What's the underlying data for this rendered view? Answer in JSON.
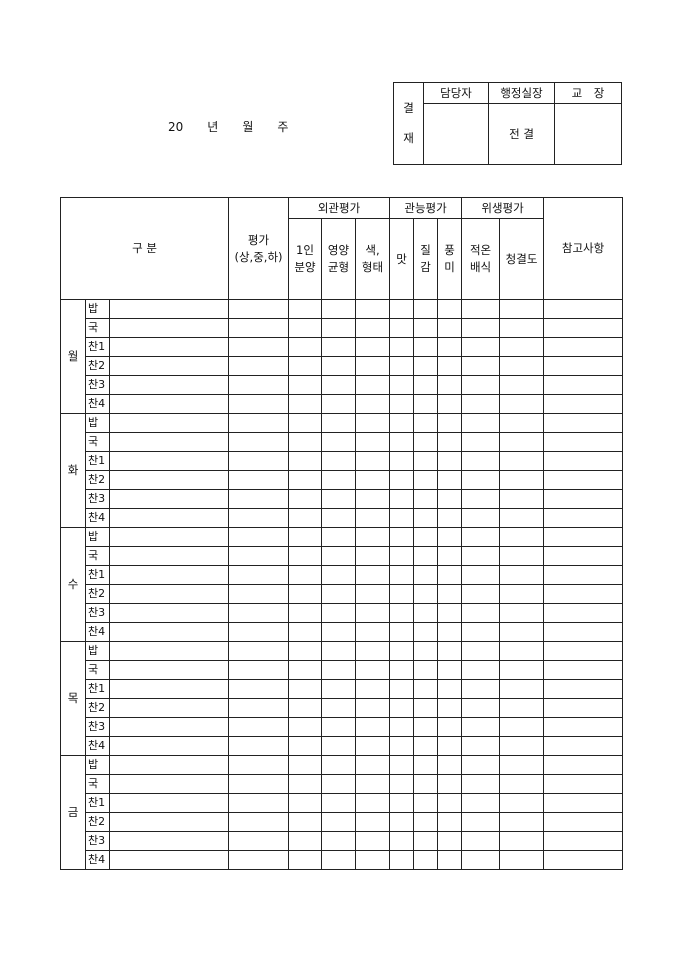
{
  "title": {
    "year_suffix": "20",
    "year": "년",
    "month": "월",
    "week": "주"
  },
  "approval": {
    "side_label_top": "결",
    "side_label_bottom": "재",
    "headers": [
      "담당자",
      "행정실장",
      "교　장"
    ],
    "values": [
      "",
      "전 결",
      ""
    ]
  },
  "table": {
    "category": "구 분",
    "rating": "평가\n(상,중,하)",
    "groups": {
      "appearance": "외관평가",
      "sensory": "관능평가",
      "hygiene": "위생평가"
    },
    "subheaders": [
      "1인\n분양",
      "영양\n균형",
      "색,\n형태",
      "맛",
      "질\n감",
      "풍\n미",
      "적온\n배식",
      "청결도"
    ],
    "notes": "참고사항",
    "days": [
      "월",
      "화",
      "수",
      "목",
      "금"
    ],
    "items": [
      "밥",
      "국",
      "찬1",
      "찬2",
      "찬3",
      "찬4"
    ]
  }
}
